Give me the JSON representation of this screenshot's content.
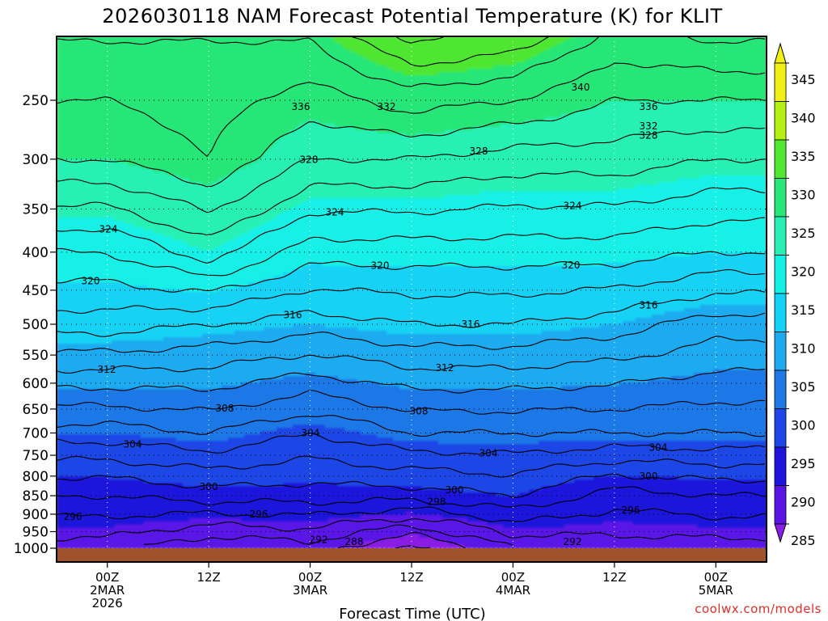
{
  "chart_data": {
    "type": "heatmap",
    "title": "2026030118 NAM Forecast Potential Temperature (K) for KLIT",
    "xlabel": "Forecast Time (UTC)",
    "ylabel": "",
    "y_axis_ticks": [
      250,
      300,
      350,
      400,
      450,
      500,
      550,
      600,
      650,
      700,
      750,
      800,
      850,
      900,
      950,
      1000
    ],
    "y_axis_unit": "hPa",
    "ylim": [
      1000,
      200
    ],
    "x_axis_ticks": [
      {
        "line1": "00Z",
        "line2": "2MAR",
        "line3": "2026",
        "hour": 6
      },
      {
        "line1": "12Z",
        "line2": "",
        "line3": "",
        "hour": 18
      },
      {
        "line1": "00Z",
        "line2": "3MAR",
        "line3": "",
        "hour": 30
      },
      {
        "line1": "12Z",
        "line2": "",
        "line3": "",
        "hour": 42
      },
      {
        "line1": "00Z",
        "line2": "4MAR",
        "line3": "",
        "hour": 54
      },
      {
        "line1": "12Z",
        "line2": "",
        "line3": "",
        "hour": 66
      },
      {
        "line1": "00Z",
        "line2": "5MAR",
        "line3": "",
        "hour": 78
      }
    ],
    "xlim_hours": [
      0,
      84
    ],
    "colorbar": {
      "levels": [
        285,
        290,
        295,
        300,
        305,
        310,
        315,
        320,
        325,
        330,
        335,
        340,
        345
      ],
      "colors": [
        "#8a1ee6",
        "#5a14e6",
        "#1e14dc",
        "#1e46e6",
        "#1e78e6",
        "#1eaaf0",
        "#14d2f5",
        "#14f0e6",
        "#28f0b4",
        "#28e678",
        "#50e632",
        "#b4f014",
        "#f0f014"
      ],
      "unit": "K",
      "placement": "right"
    },
    "contour_labels": [
      336,
      340,
      332,
      336,
      332,
      328,
      328,
      328,
      324,
      324,
      324,
      320,
      320,
      320,
      316,
      316,
      316,
      312,
      312,
      308,
      308,
      304,
      304,
      304,
      300,
      300,
      300,
      304,
      298,
      296,
      296,
      296,
      292,
      292,
      288
    ],
    "profiles_at_x_ticks": [
      {
        "time": "00Z 2MAR",
        "theta_at_pressure": {
          "1000": 293,
          "850": 298,
          "700": 305,
          "500": 317,
          "400": 322,
          "300": 330,
          "250": 332
        }
      },
      {
        "time": "12Z 2MAR",
        "theta_at_pressure": {
          "1000": 290,
          "850": 299,
          "700": 306,
          "500": 316,
          "400": 325,
          "300": 332,
          "250": 333
        }
      },
      {
        "time": "00Z 3MAR",
        "theta_at_pressure": {
          "1000": 291,
          "850": 299,
          "700": 304,
          "500": 315,
          "400": 321,
          "300": 328,
          "250": 331
        }
      },
      {
        "time": "12Z 3MAR",
        "theta_at_pressure": {
          "1000": 287,
          "850": 299,
          "700": 306,
          "500": 316,
          "400": 321,
          "300": 328,
          "250": 333
        }
      },
      {
        "time": "00Z 4MAR",
        "theta_at_pressure": {
          "1000": 292,
          "850": 300,
          "700": 306,
          "500": 316,
          "400": 321,
          "300": 327,
          "250": 332
        }
      },
      {
        "time": "12Z 4MAR",
        "theta_at_pressure": {
          "1000": 293,
          "850": 297,
          "700": 306,
          "500": 315,
          "400": 321,
          "300": 327,
          "250": 330
        }
      },
      {
        "time": "00Z 5MAR",
        "theta_at_pressure": {
          "1000": 293,
          "850": 298,
          "700": 306,
          "500": 313,
          "400": 320,
          "300": 326,
          "250": 330
        }
      }
    ],
    "ground_color": "#a0522d",
    "grid": true
  },
  "credit": "coolwx.com/models"
}
